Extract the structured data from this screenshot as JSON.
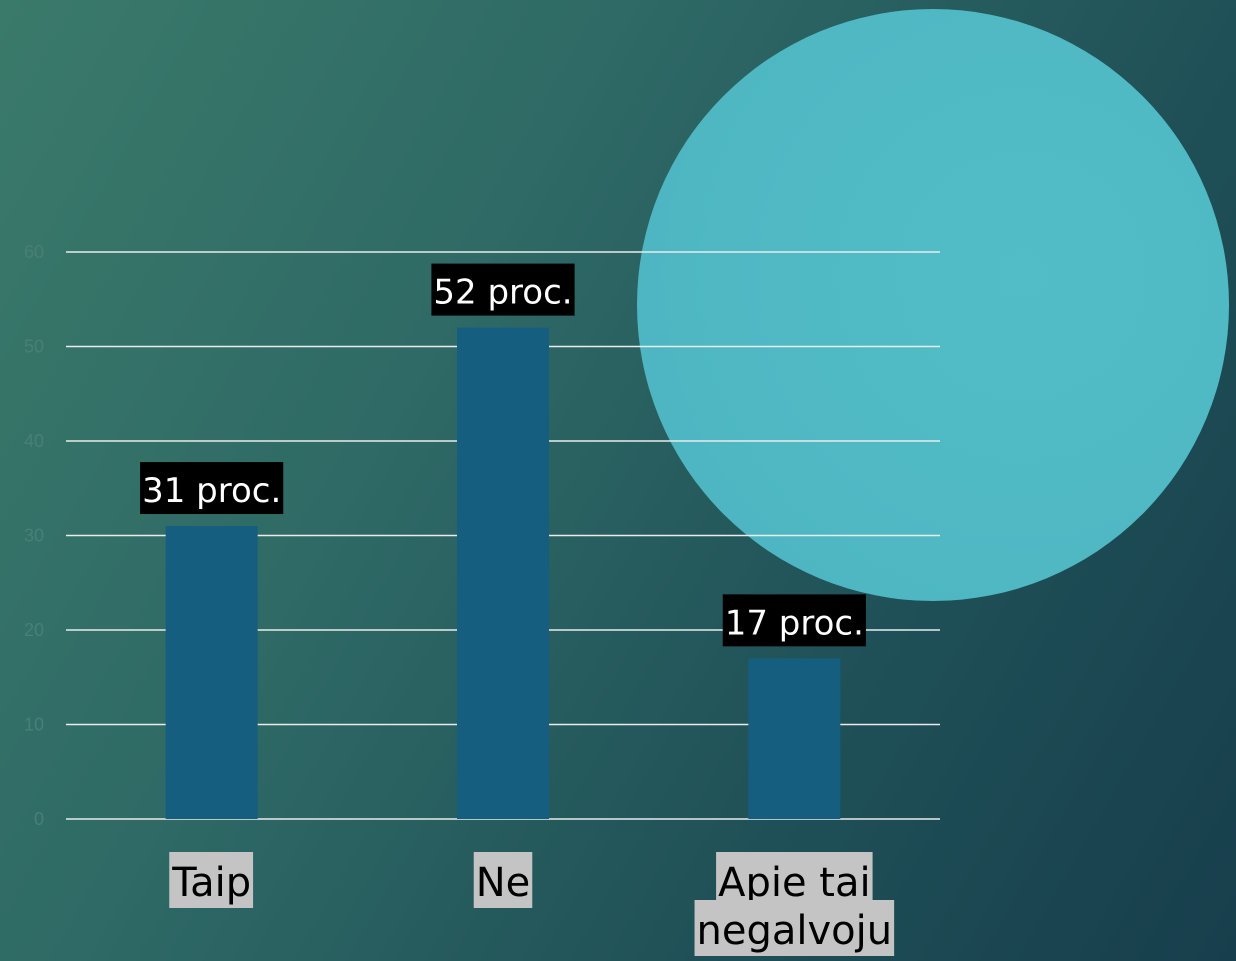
{
  "colors": {
    "bar": "#165e80",
    "gridline": "#e8ecec",
    "circle": "#4fb8c3",
    "data_label_bg": "#000000",
    "data_label_text": "#ffffff",
    "category_label_bg": "#c4c4c4",
    "category_label_text": "#000000",
    "tick_label": "#4a7f78"
  },
  "chart_data": {
    "type": "bar",
    "title": "",
    "xlabel": "",
    "ylabel": "",
    "categories": [
      [
        "Taip"
      ],
      [
        "Ne"
      ],
      [
        "Apie tai",
        "negalvoju"
      ]
    ],
    "values": [
      31,
      52,
      17
    ],
    "data_labels": [
      "31 proc.",
      "52 proc.",
      "17 proc."
    ],
    "ylim": [
      0,
      60
    ],
    "yticks": [
      0,
      10,
      20,
      30,
      40,
      50,
      60
    ],
    "grid": true,
    "legend": "none"
  }
}
